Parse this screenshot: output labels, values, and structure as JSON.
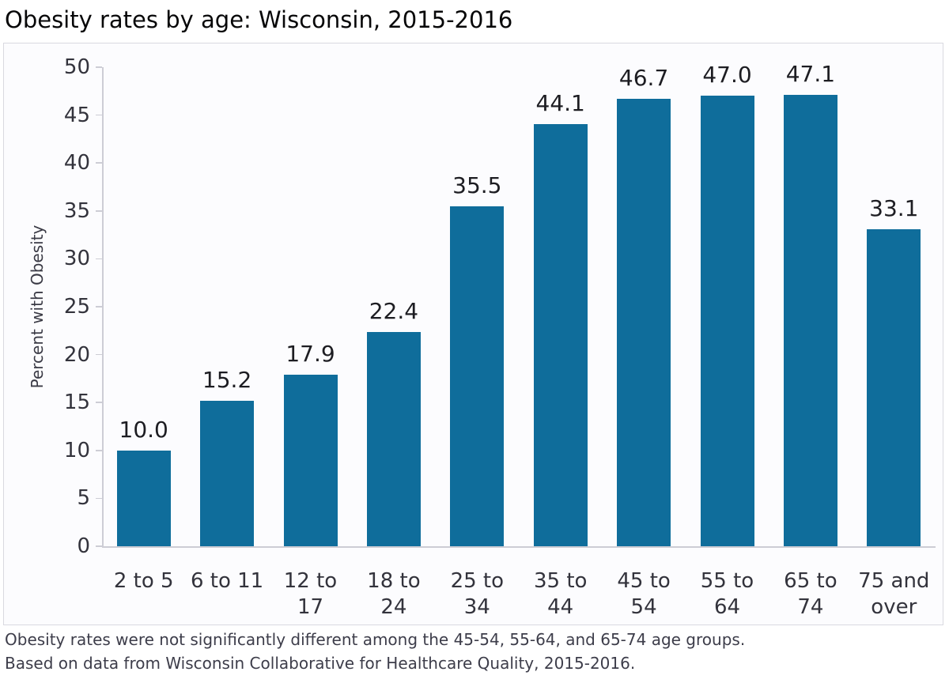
{
  "title": "Obesity rates by age: Wisconsin, 2015-2016",
  "chart_data": {
    "type": "bar",
    "categories": [
      "2 to 5",
      "6 to 11",
      "12 to 17",
      "18 to 24",
      "25 to 34",
      "35 to 44",
      "45 to 54",
      "55 to 64",
      "65 to 74",
      "75 and over"
    ],
    "values": [
      10.0,
      15.2,
      17.9,
      22.4,
      35.5,
      44.1,
      46.7,
      47.0,
      47.1,
      33.1
    ],
    "value_labels": [
      "10.0",
      "15.2",
      "17.9",
      "22.4",
      "35.5",
      "44.1",
      "46.7",
      "47.0",
      "47.1",
      "33.1"
    ],
    "title": "Obesity rates by age: Wisconsin, 2015-2016",
    "xlabel": "",
    "ylabel": "Percent with Obesity",
    "ylim": [
      0,
      50
    ],
    "yticks": [
      0,
      5,
      10,
      15,
      20,
      25,
      30,
      35,
      40,
      45,
      50
    ],
    "grid": false,
    "legend": false,
    "bar_color": "#0f6d9b",
    "axis_color": "#cdcdd5"
  },
  "footer": {
    "note1": "Obesity rates were not significantly different among the 45-54, 55-64, and 65-74 age groups.",
    "note2": "Based on data from Wisconsin Collaborative for Healthcare Quality, 2015-2016."
  }
}
